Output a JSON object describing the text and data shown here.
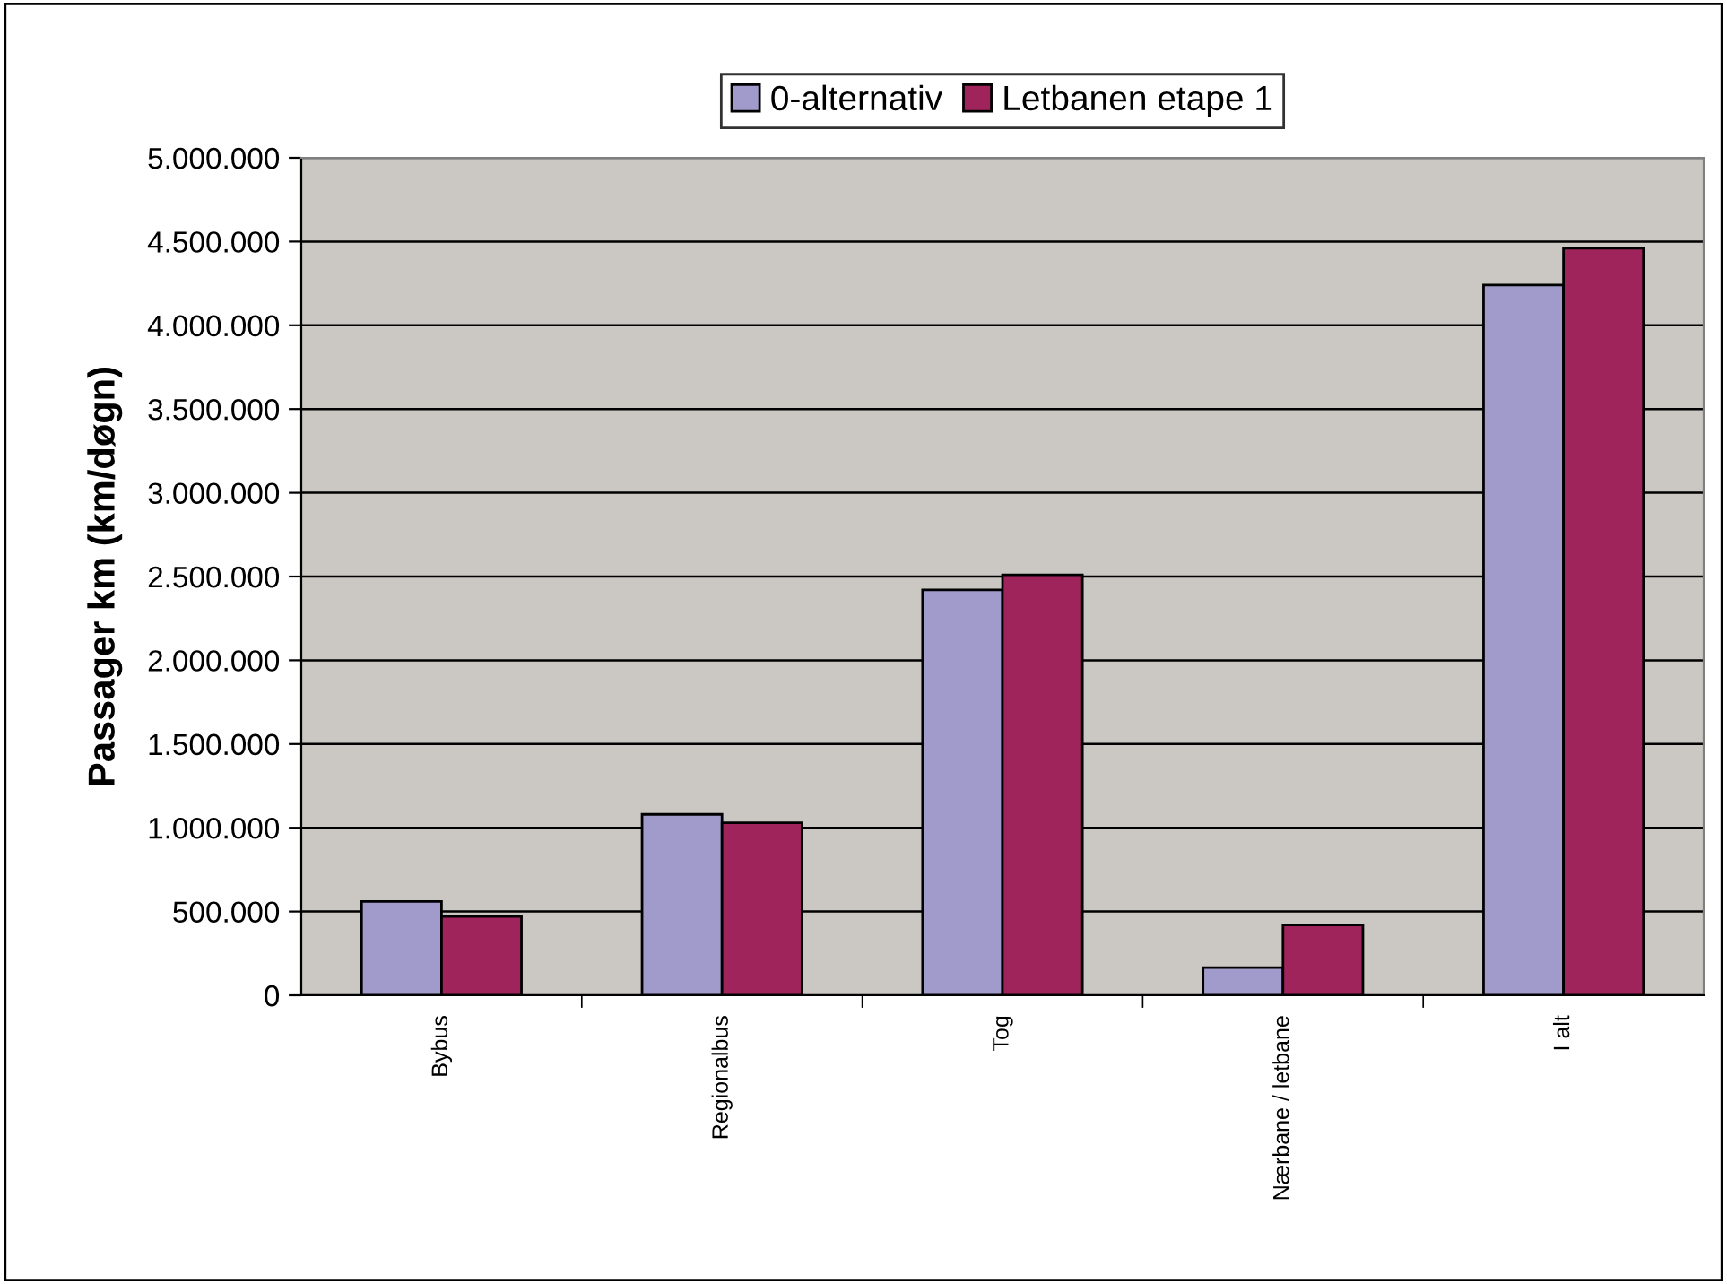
{
  "chart_data": {
    "type": "bar",
    "ylabel": "Passager km (km/døgn)",
    "categories": [
      "Bybus",
      "Regionalbus",
      "Tog",
      "Nærbane / letbane",
      "I alt"
    ],
    "series": [
      {
        "name": "0-alternativ",
        "color": "#a09bcb",
        "values": [
          560000,
          1080000,
          2420000,
          165000,
          4240000
        ]
      },
      {
        "name": "Letbanen etape 1",
        "color": "#a0245c",
        "values": [
          470000,
          1030000,
          2510000,
          420000,
          4460000
        ]
      }
    ],
    "ylim": [
      0,
      5000000
    ],
    "yticks": [
      {
        "value": 0,
        "label": "0"
      },
      {
        "value": 500000,
        "label": "500.000"
      },
      {
        "value": 1000000,
        "label": "1.000.000"
      },
      {
        "value": 1500000,
        "label": "1.500.000"
      },
      {
        "value": 2000000,
        "label": "2.000.000"
      },
      {
        "value": 2500000,
        "label": "2.500.000"
      },
      {
        "value": 3000000,
        "label": "3.000.000"
      },
      {
        "value": 3500000,
        "label": "3.500.000"
      },
      {
        "value": 4000000,
        "label": "4.000.000"
      },
      {
        "value": 4500000,
        "label": "4.500.000"
      },
      {
        "value": 5000000,
        "label": "5.000.000"
      }
    ],
    "grid": "y",
    "legend": "top"
  }
}
